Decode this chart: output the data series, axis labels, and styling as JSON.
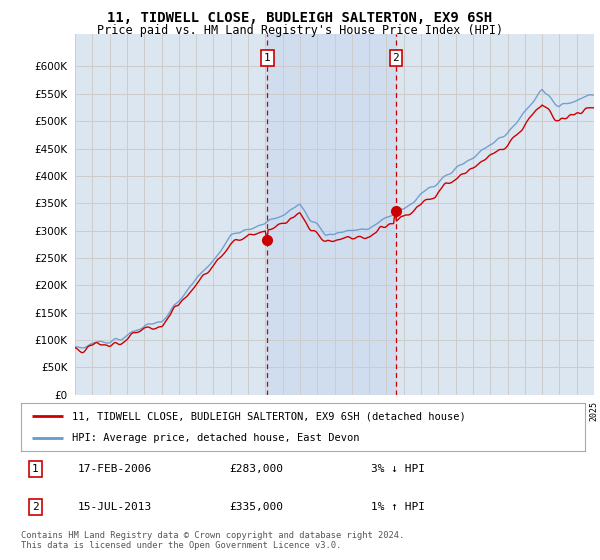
{
  "title": "11, TIDWELL CLOSE, BUDLEIGH SALTERTON, EX9 6SH",
  "subtitle": "Price paid vs. HM Land Registry's House Price Index (HPI)",
  "ylim": [
    0,
    660000
  ],
  "yticks": [
    0,
    50000,
    100000,
    150000,
    200000,
    250000,
    300000,
    350000,
    400000,
    450000,
    500000,
    550000,
    600000
  ],
  "x_start_year": 1995,
  "x_end_year": 2025,
  "background_color": "#ffffff",
  "plot_bg_color": "#dce6f1",
  "grid_color": "#cccccc",
  "hpi_color": "#6699cc",
  "price_color": "#cc0000",
  "sale1_year": 2006.12,
  "sale1_price": 283000,
  "sale2_year": 2013.54,
  "sale2_price": 335000,
  "legend_label1": "11, TIDWELL CLOSE, BUDLEIGH SALTERTON, EX9 6SH (detached house)",
  "legend_label2": "HPI: Average price, detached house, East Devon",
  "annotation1_date": "17-FEB-2006",
  "annotation1_price": "£283,000",
  "annotation1_hpi": "3% ↓ HPI",
  "annotation2_date": "15-JUL-2013",
  "annotation2_price": "£335,000",
  "annotation2_hpi": "1% ↑ HPI",
  "footer": "Contains HM Land Registry data © Crown copyright and database right 2024.\nThis data is licensed under the Open Government Licence v3.0."
}
